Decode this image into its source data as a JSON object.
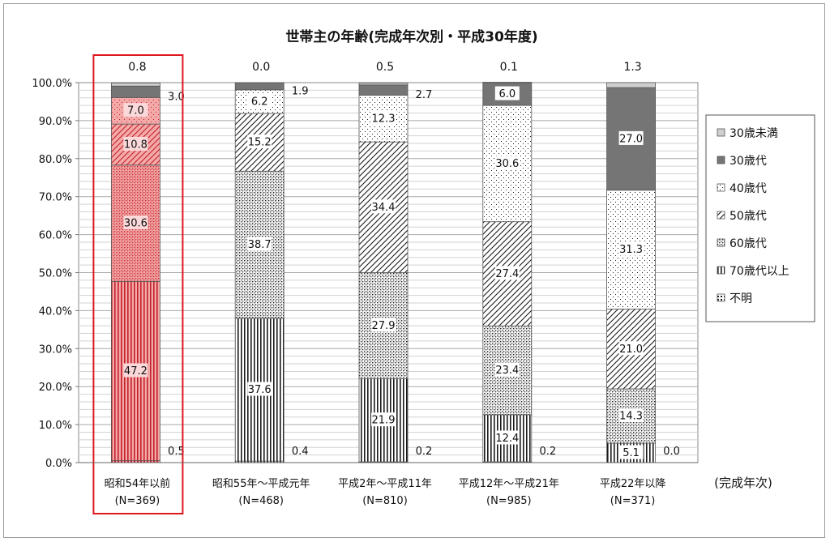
{
  "chart_data": {
    "type": "bar",
    "stacked": true,
    "title": "世帯主の年齢(完成年次別・平成30年度)",
    "xlabel": "(完成年次)",
    "ylabel": "",
    "ylim": [
      0,
      100
    ],
    "yticks": [
      "0.0%",
      "10.0%",
      "20.0%",
      "30.0%",
      "40.0%",
      "50.0%",
      "60.0%",
      "70.0%",
      "80.0%",
      "90.0%",
      "100.0%"
    ],
    "categories": [
      "昭和54年以前",
      "昭和55年～平成元年",
      "平成2年～平成11年",
      "平成12年～平成21年",
      "平成22年以降"
    ],
    "category_n": [
      "(N=369)",
      "(N=468)",
      "(N=810)",
      "(N=985)",
      "(N=371)"
    ],
    "series": [
      {
        "name": "不明",
        "values": [
          0.5,
          0.4,
          0.2,
          0.2,
          0.0
        ]
      },
      {
        "name": "70歳代以上",
        "values": [
          47.2,
          37.6,
          21.9,
          12.4,
          5.1
        ]
      },
      {
        "name": "60歳代",
        "values": [
          30.6,
          38.7,
          27.9,
          23.4,
          14.3
        ]
      },
      {
        "name": "50歳代",
        "values": [
          10.8,
          15.2,
          34.4,
          27.4,
          21.0
        ]
      },
      {
        "name": "40歳代",
        "values": [
          7.0,
          6.2,
          12.3,
          30.6,
          31.3
        ]
      },
      {
        "name": "30歳代",
        "values": [
          3.0,
          1.9,
          2.7,
          6.0,
          27.0
        ]
      },
      {
        "name": "30歳未満",
        "values": [
          0.8,
          0.0,
          0.5,
          0.1,
          1.3
        ]
      }
    ],
    "legend_order": [
      "30歳未満",
      "30歳代",
      "40歳代",
      "50歳代",
      "60歳代",
      "70歳代以上",
      "不明"
    ],
    "legend_position": "right",
    "grid": true,
    "highlight_category": "昭和54年以前",
    "colors": {
      "highlight_border": "#e0161d",
      "highlight_fill": "#f4a9a9",
      "highlight_ink": "#c3202a",
      "ink": "#1a1a1a",
      "dark_gray": "#757575",
      "light_gray": "#cfcfcf"
    }
  }
}
